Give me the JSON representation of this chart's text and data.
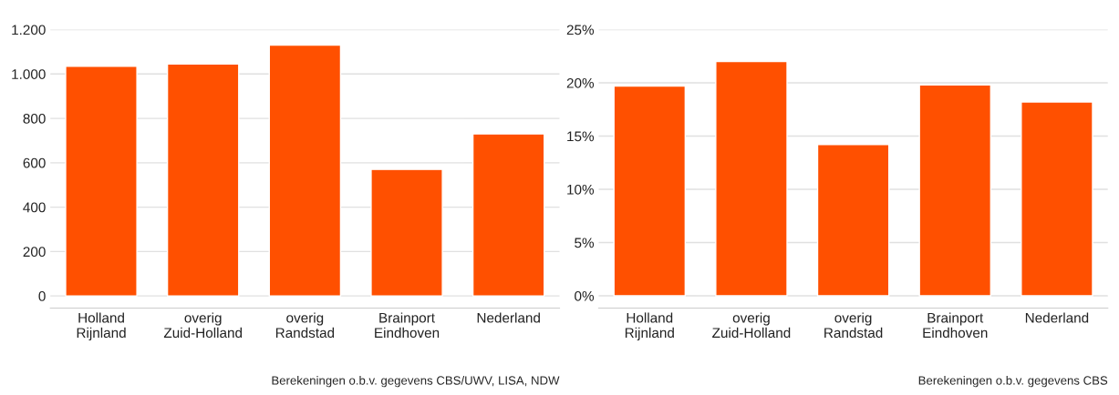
{
  "chart_data": [
    {
      "type": "bar",
      "categories": [
        "Holland\nRijnland",
        "overig\nZuid-Holland",
        "overig\nRandstad",
        "Brainport\nEindhoven",
        "Nederland"
      ],
      "values": [
        1035,
        1045,
        1130,
        570,
        730
      ],
      "color": "#ff5000",
      "ylim": [
        -55,
        1200
      ],
      "yticks": [
        0,
        200,
        400,
        600,
        800,
        {
          "value": 1000,
          "label": "1.000"
        },
        {
          "value": 1200,
          "label": "1.200"
        }
      ],
      "grid": "y",
      "annotations": [
        "Berekeningen o.b.v. gegevens CBS/UWV, LISA, NDW"
      ]
    },
    {
      "type": "bar",
      "categories": [
        "Holland\nRijnland",
        "overig\nZuid-Holland",
        "overig\nRandstad",
        "Brainport\nEindhoven",
        "Nederland"
      ],
      "values": [
        19.7,
        22.0,
        14.2,
        19.8,
        18.2
      ],
      "color": "#ff5000",
      "ylim": [
        -1.15,
        25
      ],
      "yticks": [
        {
          "value": 0,
          "label": "0%"
        },
        {
          "value": 5,
          "label": "5%"
        },
        {
          "value": 10,
          "label": "10%"
        },
        {
          "value": 15,
          "label": "15%"
        },
        {
          "value": 20,
          "label": "20%"
        },
        {
          "value": 25,
          "label": "25%"
        }
      ],
      "grid": "y",
      "annotations": [
        "Berekeningen o.b.v. gegevens CBS"
      ]
    }
  ]
}
